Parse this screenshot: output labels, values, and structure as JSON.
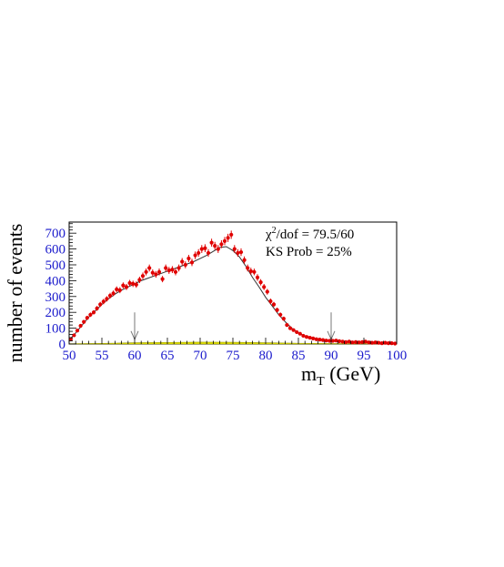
{
  "chart_data": {
    "type": "scatter",
    "xlabel": "m",
    "xlabel_sub": "T",
    "xlabel_unit": " (GeV)",
    "ylabel": "number of events",
    "xlim": [
      50,
      100
    ],
    "ylim": [
      0,
      770
    ],
    "x_ticks": [
      "50",
      "55",
      "60",
      "65",
      "70",
      "75",
      "80",
      "85",
      "90",
      "95",
      "100"
    ],
    "y_ticks": [
      "0",
      "100",
      "200",
      "300",
      "400",
      "500",
      "600",
      "700"
    ],
    "stats": {
      "chi2_symbol": "χ",
      "chi2_sup": "2",
      "chi2_rest": "/dof = 79.5/60",
      "ks": "KS Prob = 25%"
    },
    "fit_range_arrows": [
      60,
      90
    ],
    "colors": {
      "data": "#e00000",
      "fit": "#333333",
      "background": "#e6e600",
      "axis_text": "#1a1acc",
      "arrow": "#777777"
    },
    "series": [
      {
        "role": "data",
        "x": [
          50.25,
          50.75,
          51.25,
          51.75,
          52.25,
          52.75,
          53.25,
          53.75,
          54.25,
          54.75,
          55.25,
          55.75,
          56.25,
          56.75,
          57.25,
          57.75,
          58.25,
          58.75,
          59.25,
          59.75,
          60.25,
          60.75,
          61.25,
          61.75,
          62.25,
          62.75,
          63.25,
          63.75,
          64.25,
          64.75,
          65.25,
          65.75,
          66.25,
          66.75,
          67.25,
          67.75,
          68.25,
          68.75,
          69.25,
          69.75,
          70.25,
          70.75,
          71.25,
          71.75,
          72.25,
          72.75,
          73.25,
          73.75,
          74.25,
          74.75,
          75.25,
          75.75,
          76.25,
          76.75,
          77.25,
          77.75,
          78.25,
          78.75,
          79.25,
          79.75,
          80.25,
          80.75,
          81.25,
          81.75,
          82.25,
          82.75,
          83.25,
          83.75,
          84.25,
          84.75,
          85.25,
          85.75,
          86.25,
          86.75,
          87.25,
          87.75,
          88.25,
          88.75,
          89.25,
          89.75,
          90.25,
          90.75,
          91.25,
          91.75,
          92.25,
          92.75,
          93.25,
          93.75,
          94.25,
          94.75,
          95.25,
          95.75,
          96.25,
          96.75,
          97.25,
          97.75,
          98.25,
          98.75,
          99.25,
          99.75
        ],
        "y": [
          30,
          55,
          85,
          115,
          140,
          165,
          185,
          200,
          225,
          250,
          268,
          285,
          305,
          320,
          345,
          340,
          370,
          360,
          385,
          380,
          375,
          405,
          430,
          455,
          480,
          450,
          440,
          455,
          410,
          480,
          465,
          470,
          455,
          480,
          520,
          500,
          540,
          515,
          560,
          575,
          600,
          605,
          575,
          640,
          620,
          600,
          630,
          650,
          670,
          690,
          600,
          575,
          580,
          530,
          480,
          460,
          455,
          420,
          390,
          360,
          330,
          270,
          250,
          215,
          185,
          160,
          120,
          100,
          88,
          75,
          65,
          52,
          45,
          40,
          35,
          30,
          28,
          25,
          22,
          20,
          20,
          22,
          18,
          15,
          12,
          15,
          10,
          12,
          10,
          12,
          15,
          10,
          8,
          10,
          8,
          5,
          8,
          5,
          5,
          3
        ],
        "yerr": [
          6,
          8,
          10,
          11,
          12,
          13,
          14,
          14,
          15,
          16,
          17,
          17,
          18,
          18,
          19,
          19,
          19,
          19,
          20,
          20,
          20,
          20,
          21,
          22,
          22,
          21,
          21,
          22,
          20,
          22,
          22,
          22,
          21,
          22,
          23,
          22,
          23,
          23,
          24,
          24,
          25,
          25,
          24,
          25,
          25,
          25,
          25,
          26,
          26,
          26,
          25,
          24,
          24,
          23,
          22,
          22,
          21,
          21,
          20,
          19,
          18,
          17,
          16,
          15,
          14,
          13,
          11,
          10,
          9,
          9,
          8,
          7,
          7,
          6,
          6,
          6,
          5,
          5,
          5,
          5,
          5,
          5,
          4,
          4,
          4,
          4,
          3,
          4,
          3,
          4,
          4,
          3,
          3,
          3,
          3,
          2,
          3,
          2,
          2,
          2
        ]
      },
      {
        "role": "fit",
        "x": [
          50,
          51,
          52,
          53,
          54,
          55,
          56,
          57,
          58,
          59,
          60,
          61,
          62,
          63,
          64,
          65,
          66,
          67,
          68,
          69,
          70,
          71,
          72,
          73,
          74,
          75,
          76,
          77,
          78,
          79,
          80,
          81,
          82,
          83,
          84,
          85,
          86,
          87,
          88,
          89,
          90,
          91,
          92,
          93,
          94,
          95,
          96,
          97,
          98,
          99,
          100
        ],
        "y": [
          25,
          70,
          120,
          170,
          210,
          250,
          285,
          315,
          340,
          360,
          380,
          400,
          415,
          430,
          445,
          460,
          475,
          490,
          505,
          520,
          540,
          560,
          585,
          610,
          615,
          590,
          550,
          490,
          420,
          360,
          295,
          240,
          185,
          140,
          100,
          70,
          50,
          35,
          28,
          22,
          18,
          16,
          14,
          12,
          10,
          9,
          8,
          7,
          6,
          5,
          4
        ]
      },
      {
        "role": "background",
        "x": [
          50,
          55,
          60,
          65,
          70,
          75,
          80,
          85,
          90,
          95,
          100
        ],
        "y": [
          2,
          4,
          8,
          10,
          12,
          11,
          8,
          5,
          3,
          2,
          1
        ]
      }
    ]
  }
}
